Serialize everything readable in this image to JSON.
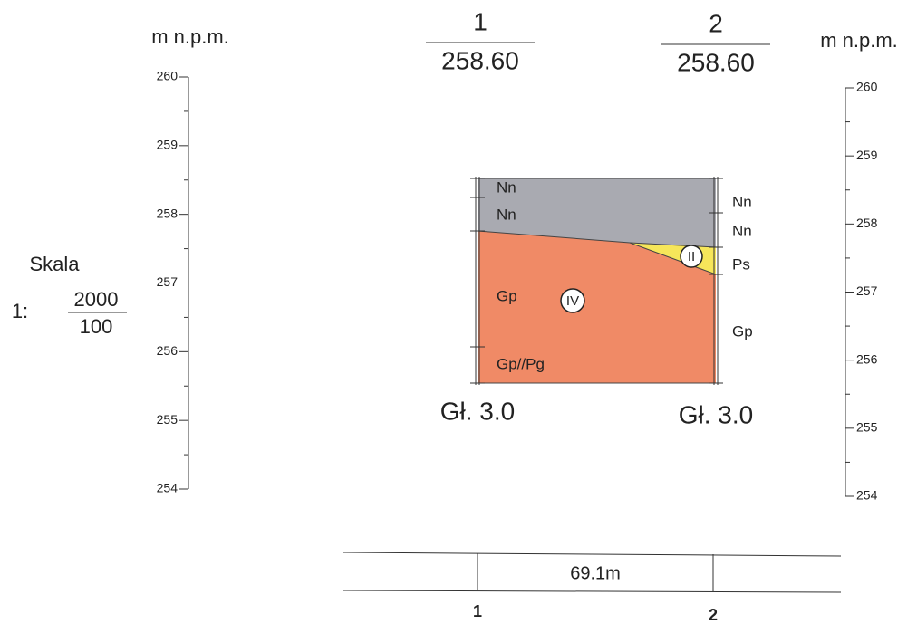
{
  "left_axis": {
    "unit": "m n.p.m.",
    "ticks": [
      260,
      259,
      258,
      257,
      256,
      255,
      254
    ]
  },
  "right_axis": {
    "unit": "m n.p.m.",
    "ticks": [
      260,
      259,
      258,
      257,
      256,
      255,
      254
    ]
  },
  "scale": {
    "label": "Skala",
    "prefix": "1:",
    "numerator": "2000",
    "denominator": "100"
  },
  "boreholes": [
    {
      "number": "1",
      "elevation": "258.60",
      "depth": "Gł. 3.0",
      "layers": [
        "Nn",
        "Nn",
        "Gp",
        "Gp//Pg"
      ]
    },
    {
      "number": "2",
      "elevation": "258.60",
      "depth": "Gł. 3.0",
      "layers": [
        "Nn",
        "Nn",
        "Ps",
        "Gp"
      ]
    }
  ],
  "units": [
    "IV",
    "II"
  ],
  "distance": {
    "label": "69.1m",
    "points": [
      "1",
      "2"
    ]
  }
}
